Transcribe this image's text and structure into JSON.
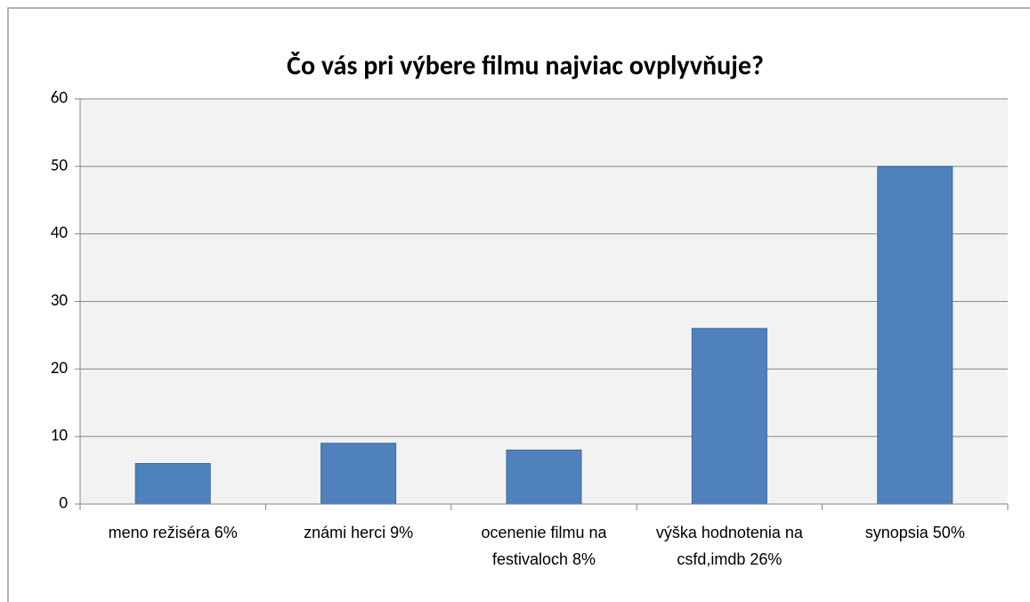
{
  "chart_data": {
    "type": "bar",
    "title": "Čo vás pri výbere filmu najviac ovplyvňuje?",
    "categories": [
      "meno režiséra 6%",
      "známi herci 9%",
      "ocenenie filmu na festivaloch 8%",
      "výška hodnotenia na csfd,imdb 26%",
      "synopsia 50%"
    ],
    "values": [
      6,
      9,
      8,
      26,
      50
    ],
    "color": "#4f81bd",
    "ylim": [
      0,
      60
    ],
    "yticks": [
      0,
      10,
      20,
      30,
      40,
      50,
      60
    ],
    "grid": true
  }
}
